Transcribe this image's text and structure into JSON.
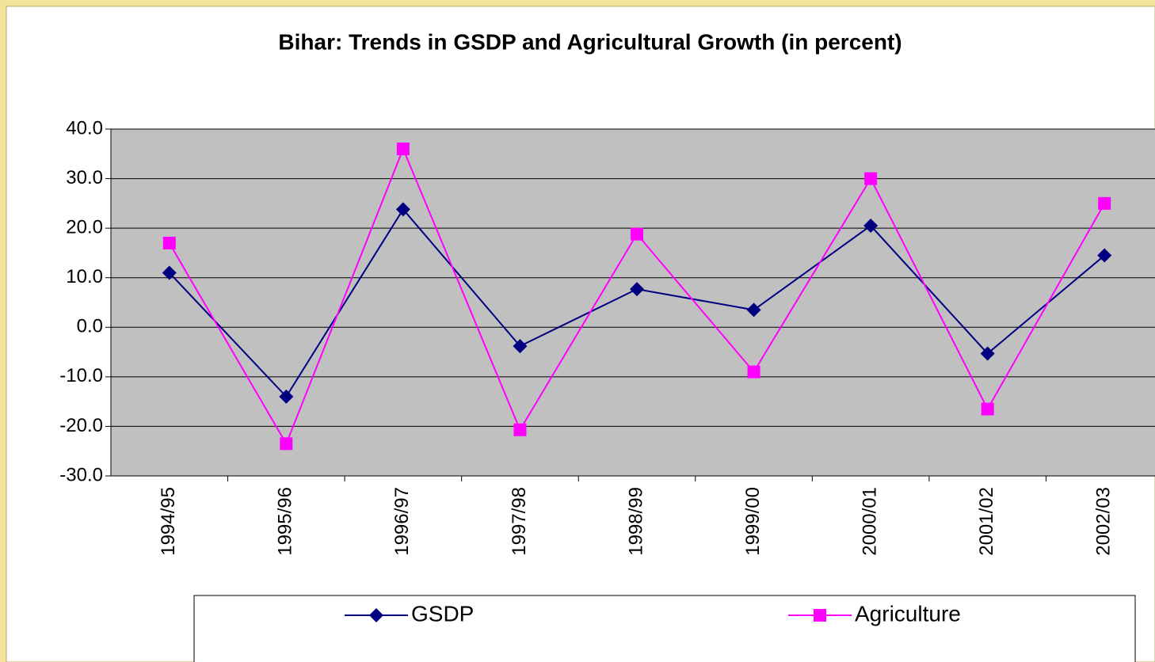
{
  "chart_data": {
    "type": "line",
    "title": "Bihar: Trends in GSDP and Agricultural Growth (in percent)",
    "categories": [
      "1994/95",
      "1995/96",
      "1996/97",
      "1997/98",
      "1998/99",
      "1999/00",
      "2000/01",
      "2001/02",
      "2002/03"
    ],
    "series": [
      {
        "name": "GSDP",
        "color": "#000080",
        "marker": "diamond",
        "values": [
          11.0,
          -14.0,
          23.8,
          -3.8,
          7.7,
          3.5,
          20.5,
          -5.3,
          14.5
        ]
      },
      {
        "name": "Agriculture",
        "color": "#ff00ff",
        "marker": "square",
        "values": [
          17.0,
          -23.5,
          36.0,
          -20.7,
          18.8,
          -9.0,
          30.0,
          -16.5,
          25.0
        ]
      }
    ],
    "ylim": [
      -30,
      40
    ],
    "yticks": [
      {
        "value": -30,
        "label": "-30.0"
      },
      {
        "value": -20,
        "label": "-20.0"
      },
      {
        "value": -10,
        "label": "-10.0"
      },
      {
        "value": 0,
        "label": "0.0"
      },
      {
        "value": 10,
        "label": "10.0"
      },
      {
        "value": 20,
        "label": "20.0"
      },
      {
        "value": 30,
        "label": "30.0"
      },
      {
        "value": 40,
        "label": "40.0"
      }
    ],
    "grid": true,
    "legend": "bottom"
  }
}
